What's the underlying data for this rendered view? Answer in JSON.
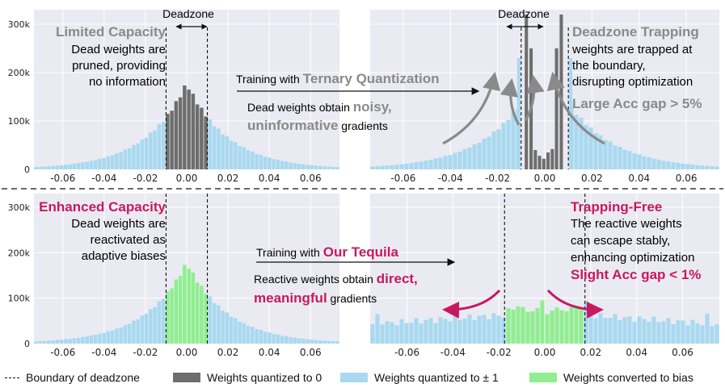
{
  "colors": {
    "zero": "#6e6e6e",
    "pm1": "#a8d9f0",
    "bias": "#90ee90",
    "accent_gray": "#8a8a8a",
    "accent_magenta": "#c8195e",
    "panel_bg": "#eaeaf2"
  },
  "text": {
    "deadzone_tl": "Deadzone",
    "deadzone_tr": "Deadzone",
    "limited_title": "Limited Capacity",
    "limited_l1": "Dead weights are",
    "limited_l2": "pruned, providing",
    "limited_l3": "no information",
    "train_top_prefix": "Training with ",
    "train_top_bold": "Ternary Quantization",
    "noisy_l1_prefix": "Dead weights obtain ",
    "noisy_l1_bold": "noisy,",
    "noisy_l2_bold": "uninformative",
    "noisy_l2_suffix": " gradients",
    "trap_title": "Deadzone Trapping",
    "trap_l1": "weights are trapped at",
    "trap_l2": "the boundary,",
    "trap_l3": "disrupting optimization",
    "trap_gap": "Large Acc gap > 5%",
    "enh_title": "Enhanced Capacity",
    "enh_l1": "Dead weights are",
    "enh_l2": "reactivated as",
    "enh_l3": "adaptive biases",
    "train_bot_prefix": "Training with ",
    "train_bot_bold": "Our Tequila",
    "react_l1_prefix": "Reactive weights obtain ",
    "react_l1_bold": "direct,",
    "react_l2_bold": "meaningful",
    "react_l2_suffix": " gradients",
    "free_title": "Trapping-Free",
    "free_l1": "The reactive weights",
    "free_l2": "can escape stably,",
    "free_l3": "enhancing optimization",
    "free_gap": "Slight Acc gap < 1%"
  },
  "legend": {
    "boundary": "Boundary of deadzone",
    "zero": "Weights quantized to 0",
    "pm1": "Weights quantized to ± 1",
    "bias": "Weights converted to bias"
  },
  "chart_data": [
    {
      "type": "bar",
      "panel": "top-left",
      "xlim": [
        -0.074,
        0.074
      ],
      "ylim": [
        0,
        330000
      ],
      "xticks": [
        "-0.06",
        "-0.04",
        "-0.02",
        "0.00",
        "0.02",
        "0.04",
        "0.06"
      ],
      "yticks": [
        "0",
        "100k",
        "200k",
        "300k"
      ],
      "deadzone": [
        -0.01,
        0.01
      ],
      "distribution": "laplace",
      "peak": 178000,
      "scale": 0.02,
      "deadzone_role": "zero"
    },
    {
      "type": "bar",
      "panel": "top-right",
      "xlim": [
        -0.074,
        0.074
      ],
      "ylim": [
        0,
        330000
      ],
      "xticks": [
        "-0.06",
        "-0.04",
        "-0.02",
        "0.00",
        "0.02",
        "0.04",
        "0.06"
      ],
      "deadzone": [
        -0.01,
        0.01
      ],
      "bins": [
        {
          "x": -0.011,
          "y": 230000,
          "role": "pm1"
        },
        {
          "x": -0.0078,
          "y": 320000,
          "role": "zero"
        },
        {
          "x": -0.0058,
          "y": 250000,
          "role": "zero"
        },
        {
          "x": -0.004,
          "y": 40000,
          "role": "zero"
        },
        {
          "x": -0.0022,
          "y": 28000,
          "role": "zero"
        },
        {
          "x": -0.0004,
          "y": 22000,
          "role": "zero"
        },
        {
          "x": 0.0014,
          "y": 35000,
          "role": "zero"
        },
        {
          "x": 0.0032,
          "y": 42000,
          "role": "zero"
        },
        {
          "x": 0.005,
          "y": 250000,
          "role": "zero"
        },
        {
          "x": 0.007,
          "y": 320000,
          "role": "zero"
        },
        {
          "x": 0.011,
          "y": 230000,
          "role": "pm1"
        }
      ],
      "distribution": "laplace",
      "peak": 225000,
      "scale": 0.02
    },
    {
      "type": "bar",
      "panel": "bottom-left",
      "xlim": [
        -0.074,
        0.074
      ],
      "ylim": [
        0,
        330000
      ],
      "xticks": [
        "-0.06",
        "-0.04",
        "-0.02",
        "0.00",
        "0.02",
        "0.04",
        "0.06"
      ],
      "yticks": [
        "0",
        "100k",
        "200k",
        "300k"
      ],
      "deadzone": [
        -0.01,
        0.01
      ],
      "distribution": "laplace",
      "peak": 178000,
      "scale": 0.02,
      "deadzone_role": "bias"
    },
    {
      "type": "bar",
      "panel": "bottom-right",
      "xlim": [
        -0.076,
        0.076
      ],
      "ylim": [
        0,
        330000
      ],
      "xticks": [
        "-0.06",
        "-0.04",
        "-0.02",
        "0.00",
        "0.02",
        "0.04",
        "0.06"
      ],
      "deadzone": [
        -0.0175,
        0.0175
      ],
      "distribution": "flat",
      "deadzone_role": "bias"
    }
  ]
}
